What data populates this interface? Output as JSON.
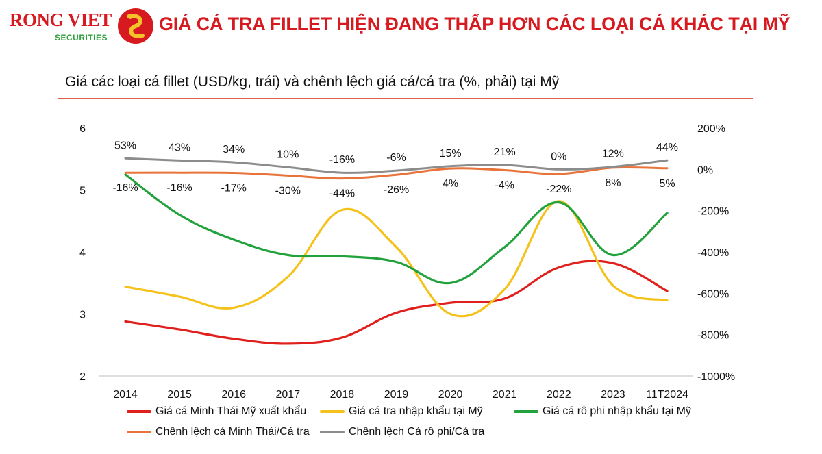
{
  "header": {
    "logo_main": "RONG VIET",
    "logo_sub": "SECURITIES",
    "headline": "GIÁ CÁ TRA FILLET HIỆN ĐANG THẤP HƠN CÁC LOẠI CÁ KHÁC TẠI MỸ"
  },
  "colors": {
    "brand_red": "#d71920",
    "brand_green": "#2e9e3e"
  },
  "chart_data": {
    "type": "line",
    "title": "Giá các loại cá fillet (USD/kg, trái) và chênh lệch giá cá/cá tra (%, phải) tại Mỹ",
    "categories": [
      "2014",
      "2015",
      "2016",
      "2017",
      "2018",
      "2019",
      "2020",
      "2021",
      "2022",
      "2023",
      "11T2024"
    ],
    "y_left": {
      "min": 2,
      "max": 6,
      "ticks": [
        "2",
        "3",
        "4",
        "5",
        "6"
      ]
    },
    "y_right": {
      "min": -1000,
      "max": 200,
      "ticks": [
        "-1000%",
        "-800%",
        "-600%",
        "-400%",
        "-200%",
        "0%",
        "200%"
      ]
    },
    "series": [
      {
        "name": "Giá cá Minh Thái Mỹ xuất khẩu",
        "axis": "left",
        "color": "#e0201c",
        "values": [
          2.88,
          2.75,
          2.6,
          2.52,
          2.62,
          3.02,
          3.18,
          3.25,
          3.75,
          3.82,
          3.37
        ]
      },
      {
        "name": "Giá cá tra nhập khẩu tại Mỹ",
        "axis": "left",
        "color": "#f5c21b",
        "values": [
          3.44,
          3.28,
          3.1,
          3.6,
          4.68,
          4.08,
          3.0,
          3.4,
          4.82,
          3.46,
          3.22
        ]
      },
      {
        "name": "Giá cá rô phi nhập khẩu tại Mỹ",
        "axis": "left",
        "color": "#22a23c",
        "values": [
          5.25,
          4.6,
          4.2,
          3.95,
          3.93,
          3.84,
          3.5,
          4.08,
          4.8,
          3.95,
          4.63
        ]
      },
      {
        "name": "Chênh lệch cá Minh Thái/Cá tra",
        "axis": "right",
        "color": "#e8743b",
        "values": [
          -16,
          -16,
          -17,
          -30,
          -44,
          -26,
          4,
          -4,
          -22,
          8,
          5
        ],
        "labels": [
          "-16%",
          "-16%",
          "-17%",
          "-30%",
          "-44%",
          "-26%",
          "4%",
          "-4%",
          "-22%",
          "8%",
          "5%"
        ]
      },
      {
        "name": "Chênh lệch Cá rô phi/Cá tra",
        "axis": "right",
        "color": "#8c8c8c",
        "values": [
          53,
          43,
          34,
          10,
          -16,
          -6,
          15,
          21,
          0,
          12,
          44
        ],
        "labels": [
          "53%",
          "43%",
          "34%",
          "10%",
          "-16%",
          "-6%",
          "15%",
          "21%",
          "0%",
          "12%",
          "44%"
        ]
      }
    ],
    "legend_position": "bottom",
    "grid": false
  }
}
